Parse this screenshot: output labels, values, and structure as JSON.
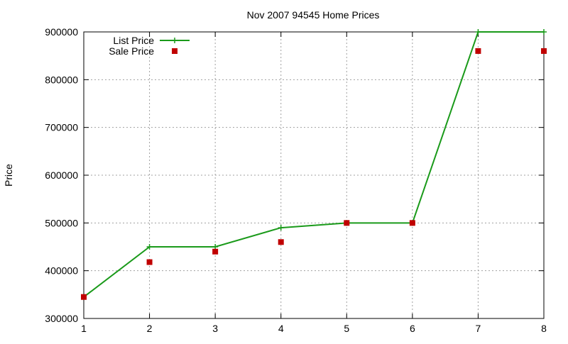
{
  "chart_data": {
    "type": "line",
    "title": "Nov 2007 94545 Home Prices",
    "xlabel": "",
    "ylabel": "Price",
    "xlim": [
      1,
      8
    ],
    "ylim": [
      300000,
      900000
    ],
    "x_ticks": [
      1,
      2,
      3,
      4,
      5,
      6,
      7,
      8
    ],
    "y_ticks": [
      300000,
      400000,
      500000,
      600000,
      700000,
      800000,
      900000
    ],
    "grid": true,
    "legend_position": "top-left",
    "series": [
      {
        "name": "List Price",
        "style": "line-points",
        "color": "#1a9a1a",
        "x": [
          1,
          2,
          3,
          4,
          5,
          6,
          7,
          8
        ],
        "values": [
          345000,
          450000,
          450000,
          490000,
          500000,
          500000,
          900000,
          900000
        ]
      },
      {
        "name": "Sale Price",
        "style": "points",
        "color": "#c00000",
        "x": [
          1,
          2,
          3,
          4,
          5,
          6,
          7,
          8
        ],
        "values": [
          345000,
          418000,
          440000,
          460000,
          500000,
          500000,
          860000,
          860000
        ]
      }
    ]
  }
}
